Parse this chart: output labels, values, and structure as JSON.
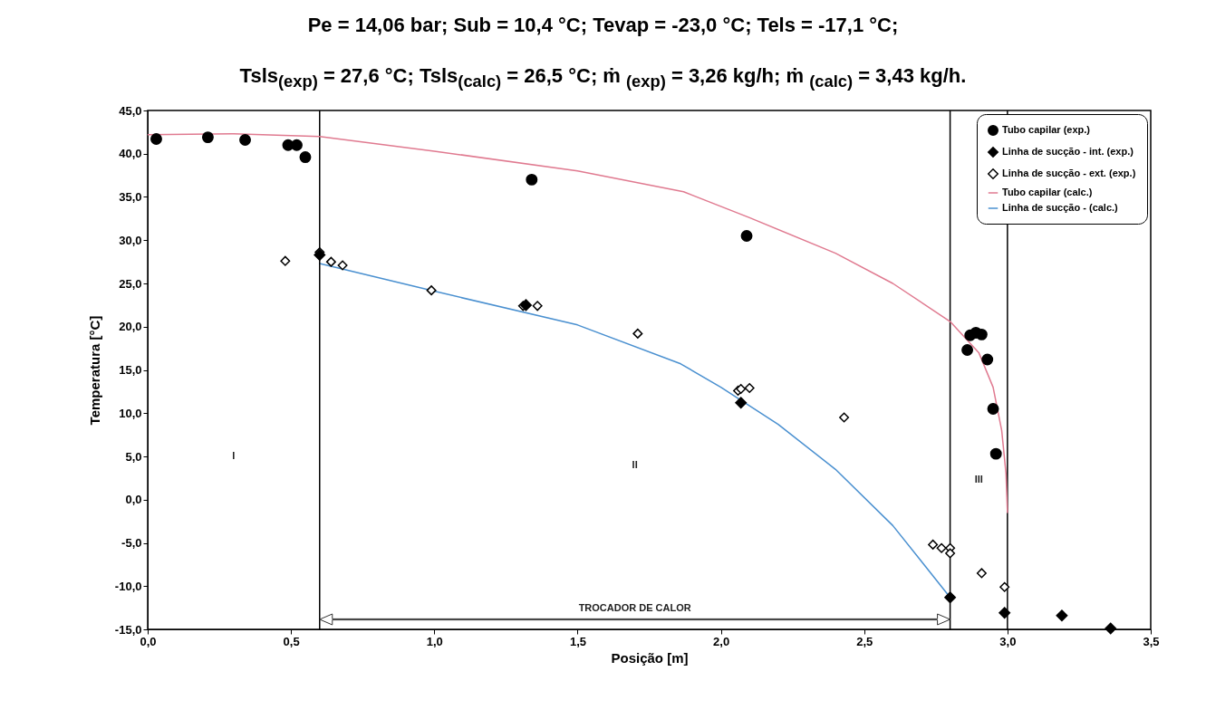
{
  "chart_data": {
    "type": "scatter",
    "title": "Pe = 14,06 bar; Sub = 10,4 °C; Tevap = -23,0 °C; Tels = -17,1 °C;",
    "subtitle": "Tsls$_{(exp)}$ = 27,6 °C; Tsls$_{(calc)}$ = 26,5 °C; ṁ $_{(exp)}$ = 3,26 kg/h; ṁ $_{(calc)}$ = 3,43 kg/h.",
    "xlabel": "Posição [m]",
    "ylabel": "Temperatura [°C]",
    "xlim": [
      0,
      3.5
    ],
    "ylim": [
      -15,
      45
    ],
    "xticks": [
      {
        "value": 0,
        "label": "0,0"
      },
      {
        "value": 0.5,
        "label": "0,5"
      },
      {
        "value": 1,
        "label": "1,0"
      },
      {
        "value": 1.5,
        "label": "1,5"
      },
      {
        "value": 2,
        "label": "2,0"
      },
      {
        "value": 2.5,
        "label": "2,5"
      },
      {
        "value": 3,
        "label": "3,0"
      },
      {
        "value": 3.5,
        "label": "3,5"
      }
    ],
    "yticks": [
      {
        "value": -15,
        "label": "-15,0"
      },
      {
        "value": -10,
        "label": "-10,0"
      },
      {
        "value": -5,
        "label": "-5,0"
      },
      {
        "value": 0,
        "label": "0,0"
      },
      {
        "value": 5,
        "label": "5,0"
      },
      {
        "value": 10,
        "label": "10,0"
      },
      {
        "value": 15,
        "label": "15,0"
      },
      {
        "value": 20,
        "label": "20,0"
      },
      {
        "value": 25,
        "label": "25,0"
      },
      {
        "value": 30,
        "label": "30,0"
      },
      {
        "value": 35,
        "label": "35,0"
      },
      {
        "value": 40,
        "label": "40,0"
      },
      {
        "value": 45,
        "label": "45,0"
      }
    ],
    "grid": false,
    "legend": "top right",
    "series": [
      {
        "name": "Tubo capilar (exp.)",
        "marker": "circle",
        "color": "#000000",
        "x": [
          0.03,
          0.21,
          0.34,
          0.49,
          0.52,
          0.55,
          1.34,
          2.09,
          2.86,
          2.87,
          2.89,
          2.91,
          2.93,
          2.95,
          2.96
        ],
        "values": [
          41.7,
          41.9,
          41.6,
          41.0,
          41.0,
          39.6,
          37.0,
          30.5,
          17.3,
          19.0,
          19.3,
          19.1,
          16.2,
          10.5,
          5.3
        ]
      },
      {
        "name": "Linha de sucção - int. (exp.)",
        "marker": "diamond",
        "color": "#000000",
        "x": [
          0.6,
          1.32,
          2.07,
          2.8,
          2.99,
          3.19,
          3.36
        ],
        "values": [
          28.3,
          22.5,
          11.2,
          -11.3,
          -13.1,
          -13.4,
          -14.9
        ]
      },
      {
        "name": "Linha de sucção - ext. (exp.)",
        "marker": "diamond-open",
        "color": "#000000",
        "x": [
          0.48,
          0.6,
          0.64,
          0.68,
          0.99,
          1.31,
          1.36,
          1.71,
          2.06,
          2.07,
          2.1,
          2.43,
          2.74,
          2.77,
          2.8,
          2.8,
          2.91,
          2.99
        ],
        "values": [
          27.6,
          28.6,
          27.5,
          27.1,
          24.2,
          22.4,
          22.4,
          19.2,
          12.6,
          12.8,
          12.9,
          9.5,
          -5.2,
          -5.6,
          -5.6,
          -6.2,
          -8.5,
          -10.1
        ]
      },
      {
        "name": "Tubo capilar (calc.)",
        "type": "line",
        "marker": "none",
        "color": "#e07a90",
        "x": [
          0,
          0.3,
          0.6,
          1.0,
          1.5,
          1.87,
          2.1,
          2.4,
          2.6,
          2.8,
          2.9,
          2.95,
          2.98,
          2.995,
          3.0
        ],
        "values": [
          42.2,
          42.3,
          42.0,
          40.3,
          38.0,
          35.6,
          32.6,
          28.5,
          25.0,
          20.6,
          17.0,
          13.0,
          8.0,
          3.0,
          -1.5
        ]
      },
      {
        "name": "Linha de sucção - (calc.)",
        "type": "line",
        "marker": "none",
        "color": "#4a90d0",
        "x": [
          0.6,
          1.0,
          1.5,
          1.86,
          2.0,
          2.2,
          2.4,
          2.6,
          2.8
        ],
        "values": [
          27.3,
          24.1,
          20.2,
          15.7,
          13.0,
          8.7,
          3.5,
          -3.0,
          -11.3
        ]
      }
    ],
    "ref_lines": [
      {
        "axis": "x",
        "value": 0.6,
        "color": "#000000"
      },
      {
        "axis": "x",
        "value": 2.8,
        "color": "#000000"
      },
      {
        "axis": "x",
        "value": 3.0,
        "color": "#000000"
      }
    ],
    "annotations": [
      "I",
      "II",
      "III",
      "TROCADOR DE CALOR"
    ]
  }
}
